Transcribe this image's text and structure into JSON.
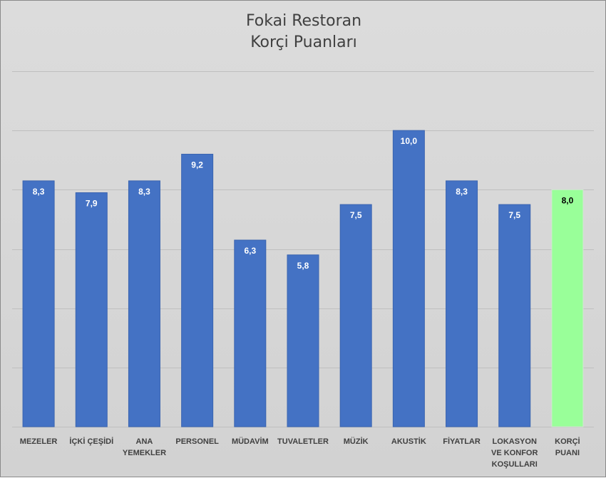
{
  "chart_data": {
    "type": "bar",
    "title_lines": [
      "Fokai Restoran",
      "Korçi Puanları"
    ],
    "categories": [
      [
        "MEZELER"
      ],
      [
        "İÇKİ ÇEŞİDİ"
      ],
      [
        "ANA",
        "YEMEKLER"
      ],
      [
        "PERSONEL"
      ],
      [
        "MÜDAVİM"
      ],
      [
        "TUVALETLER"
      ],
      [
        "MÜZİK"
      ],
      [
        "AKUSTİK"
      ],
      [
        "FİYATLAR"
      ],
      [
        "LOKASYON",
        "VE KONFOR",
        "KOŞULLARI"
      ],
      [
        "KORÇİ",
        "PUANI"
      ]
    ],
    "values": [
      8.3,
      7.9,
      8.3,
      9.2,
      6.3,
      5.8,
      7.5,
      10.0,
      8.3,
      7.5,
      8.0
    ],
    "data_labels": [
      "8,3",
      "7,9",
      "8,3",
      "9,2",
      "6,3",
      "5,8",
      "7,5",
      "10,0",
      "8,3",
      "7,5",
      "8,0"
    ],
    "ylim": [
      0,
      12
    ],
    "gridline_step": 2,
    "grid": true,
    "legend": "none",
    "colors": {
      "bar": "#4472c4",
      "highlight_bar": "#99ff99",
      "highlight_label": "#000000",
      "label": "#ffffff",
      "grid": "#bfbfbf",
      "axis_text": "#404040"
    },
    "highlight_index": 10
  }
}
